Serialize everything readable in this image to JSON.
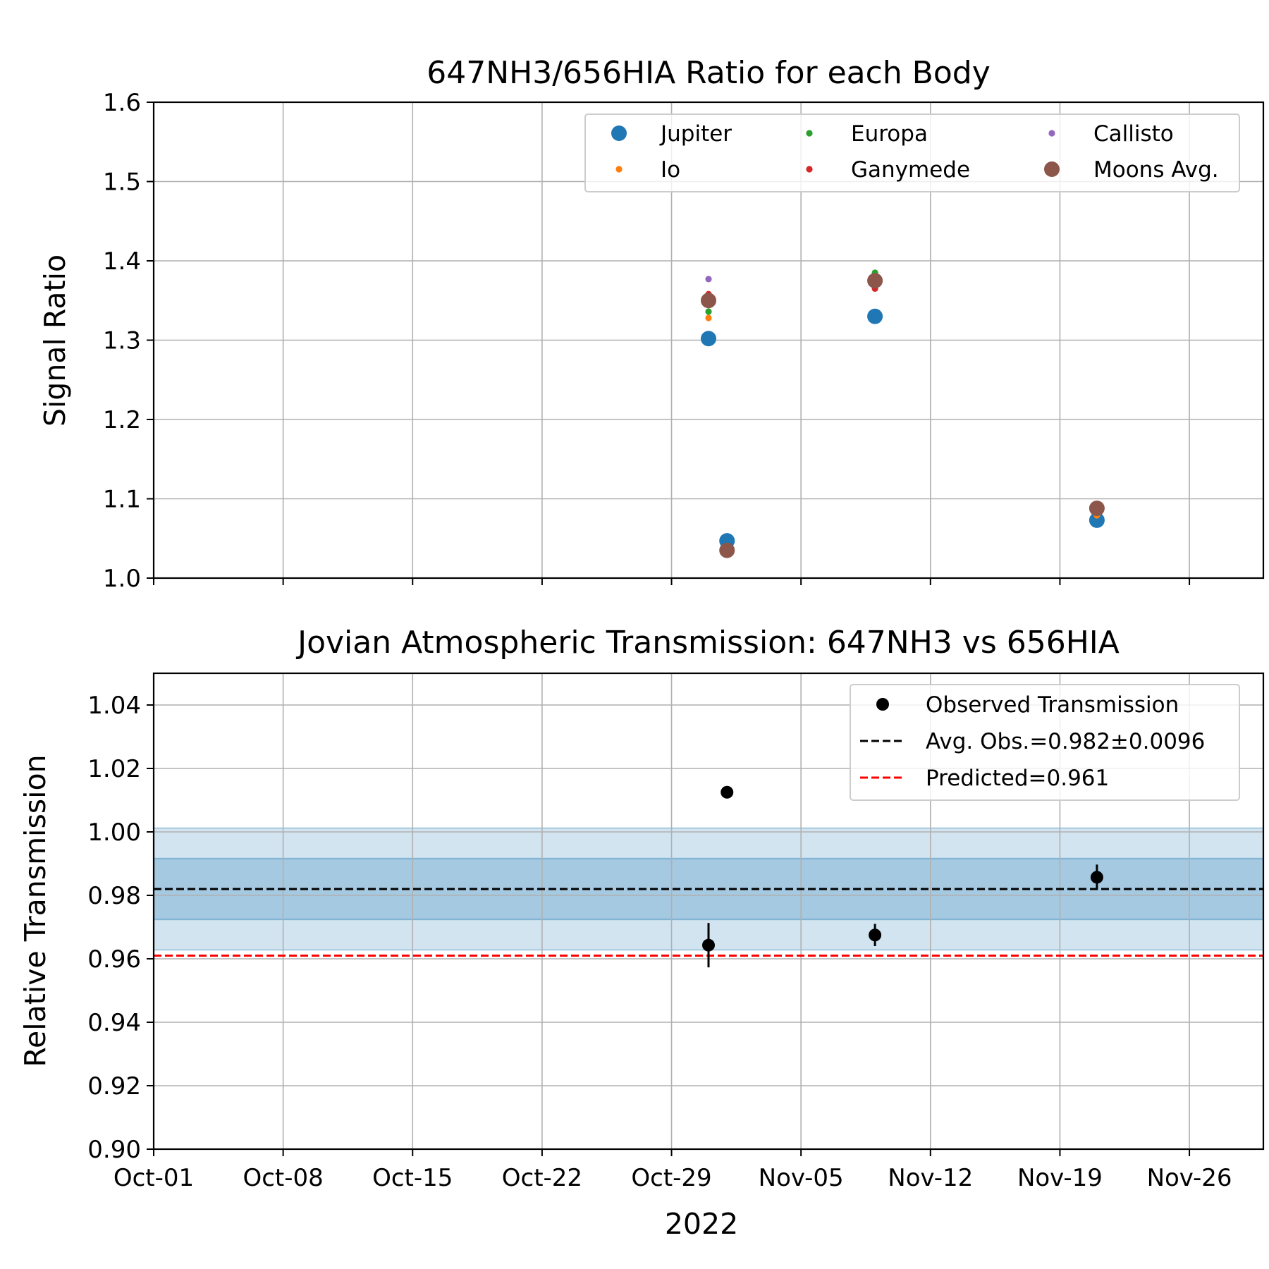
{
  "chart_data": [
    {
      "type": "scatter",
      "title": "647NH3/656HIA Ratio for each Body",
      "xlabel": "",
      "ylabel": "Signal Ratio",
      "xlim": [
        "2022-10-01",
        "2022-11-30"
      ],
      "ylim": [
        1.0,
        1.6
      ],
      "y_ticks": [
        "1.0",
        "1.1",
        "1.2",
        "1.3",
        "1.4",
        "1.5",
        "1.6"
      ],
      "grid": true,
      "legend": {
        "placement": "upper-right",
        "columns": 3
      },
      "series": [
        {
          "name": "Jupiter",
          "color": "#1f77b4",
          "marker": "large",
          "points": [
            [
              "2022-10-31",
              1.302
            ],
            [
              "2022-11-01",
              1.047
            ],
            [
              "2022-11-09",
              1.33
            ],
            [
              "2022-11-21",
              1.073
            ]
          ]
        },
        {
          "name": "Io",
          "color": "#ff7f0e",
          "marker": "small",
          "points": [
            [
              "2022-10-31",
              1.328
            ],
            [
              "2022-11-09",
              1.37
            ],
            [
              "2022-11-21",
              1.079
            ]
          ]
        },
        {
          "name": "Europa",
          "color": "#2ca02c",
          "marker": "small",
          "points": [
            [
              "2022-10-31",
              1.336
            ],
            [
              "2022-11-09",
              1.385
            ],
            [
              "2022-11-21",
              1.085
            ]
          ]
        },
        {
          "name": "Ganymede",
          "color": "#d62728",
          "marker": "small",
          "points": [
            [
              "2022-10-31",
              1.358
            ],
            [
              "2022-11-09",
              1.365
            ],
            [
              "2022-11-21",
              1.092
            ]
          ]
        },
        {
          "name": "Callisto",
          "color": "#9467bd",
          "marker": "small",
          "points": [
            [
              "2022-10-31",
              1.377
            ],
            [
              "2022-11-09",
              1.372
            ],
            [
              "2022-11-21",
              1.088
            ]
          ]
        },
        {
          "name": "Moons Avg.",
          "color": "#8c564b",
          "marker": "large",
          "points": [
            [
              "2022-10-31",
              1.35
            ],
            [
              "2022-11-01",
              1.035
            ],
            [
              "2022-11-09",
              1.375
            ],
            [
              "2022-11-21",
              1.088
            ]
          ]
        }
      ]
    },
    {
      "type": "scatter",
      "title": "Jovian Atmospheric Transmission: 647NH3 vs 656HIA",
      "xlabel": "2022",
      "ylabel": "Relative Transmission",
      "xlim": [
        "2022-10-01",
        "2022-11-30"
      ],
      "ylim": [
        0.9,
        1.05
      ],
      "y_ticks": [
        "0.90",
        "0.92",
        "0.94",
        "0.96",
        "0.98",
        "1.00",
        "1.02",
        "1.04"
      ],
      "x_ticks": [
        {
          "date": "2022-10-01",
          "label": "Oct-01"
        },
        {
          "date": "2022-10-08",
          "label": "Oct-08"
        },
        {
          "date": "2022-10-15",
          "label": "Oct-15"
        },
        {
          "date": "2022-10-22",
          "label": "Oct-22"
        },
        {
          "date": "2022-10-29",
          "label": "Oct-29"
        },
        {
          "date": "2022-11-05",
          "label": "Nov-05"
        },
        {
          "date": "2022-11-12",
          "label": "Nov-12"
        },
        {
          "date": "2022-11-19",
          "label": "Nov-19"
        },
        {
          "date": "2022-11-26",
          "label": "Nov-26"
        }
      ],
      "grid": true,
      "legend": {
        "placement": "upper-right",
        "columns": 1
      },
      "observed": {
        "name": "Observed Transmission",
        "color": "#000000",
        "points": [
          {
            "date": "2022-10-31",
            "value": 0.9643,
            "error": 0.007
          },
          {
            "date": "2022-11-01",
            "value": 1.0125,
            "error": 0
          },
          {
            "date": "2022-11-09",
            "value": 0.9675,
            "error": 0.0035
          },
          {
            "date": "2022-11-21",
            "value": 0.9857,
            "error": 0.004
          }
        ]
      },
      "average": {
        "name": "Avg. Obs.=0.982±0.0096",
        "value": 0.982,
        "std": 0.0096,
        "color": "#000000"
      },
      "predicted": {
        "name": "Predicted=0.961",
        "value": 0.961,
        "color": "#ff0000"
      },
      "band_color": "#1f77b4"
    }
  ]
}
